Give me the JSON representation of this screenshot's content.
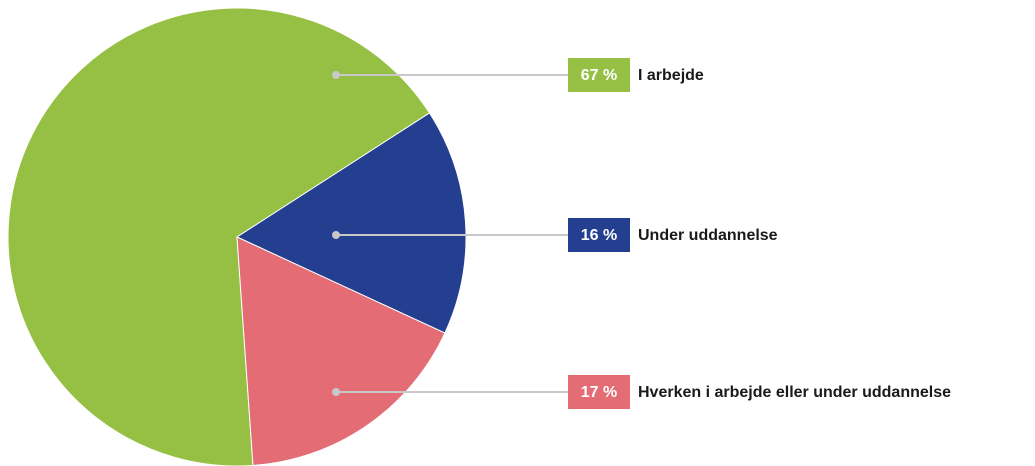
{
  "chart_data": {
    "type": "pie",
    "categories": [
      "I arbejde",
      "Under uddannelse",
      "Hverken i arbejde eller under uddannelse"
    ],
    "values": [
      67,
      16,
      17
    ],
    "value_labels": [
      "67 %",
      "16 %",
      "17 %"
    ],
    "colors": [
      "#95c043",
      "#243f8f",
      "#e36c75"
    ]
  }
}
